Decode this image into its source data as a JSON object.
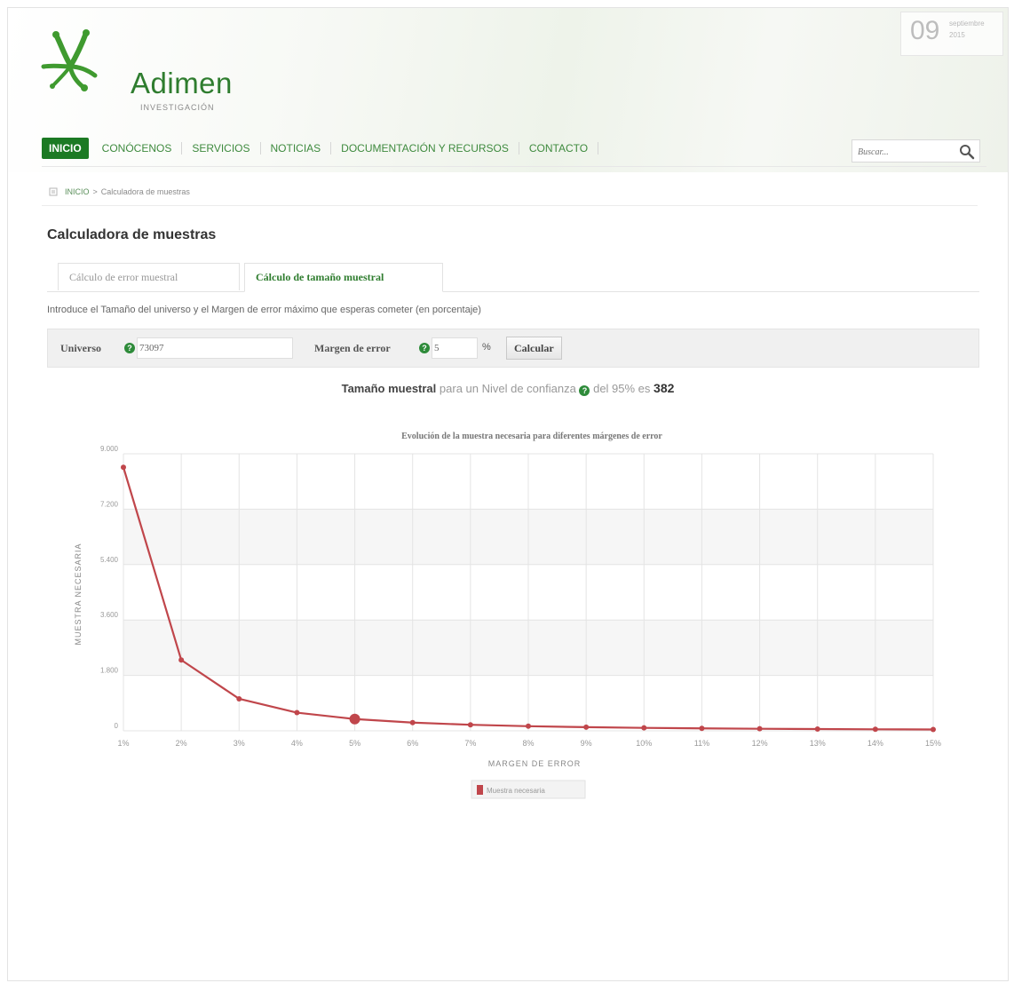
{
  "header": {
    "logo_name": "Adimen",
    "logo_sub": "INVESTIGACIÓN",
    "date_day": "09",
    "date_month": "septiembre",
    "date_year": "2015"
  },
  "nav": {
    "items": [
      "INICIO",
      "CONÓCENOS",
      "SERVICIOS",
      "NOTICIAS",
      "DOCUMENTACIÓN Y RECURSOS",
      "CONTACTO"
    ],
    "active": "INICIO"
  },
  "search": {
    "placeholder": "Buscar..."
  },
  "breadcrumb": {
    "home": "INICIO",
    "separator": ">",
    "current": "Calculadora de muestras"
  },
  "page_title": "Calculadora de muestras",
  "tabs": [
    {
      "label": "Cálculo de error muestral",
      "active": false
    },
    {
      "label": "Cálculo de tamaño muestral",
      "active": true
    }
  ],
  "intro_text": "Introduce el Tamaño del universo y el Margen de error máximo que esperas cometer (en porcentaje)",
  "form": {
    "universo_label": "Universo",
    "universo_value": "73097",
    "margen_label": "Margen de error",
    "margen_value": "5",
    "percent_sign": "%",
    "submit_label": "Calcular",
    "help_glyph": "?"
  },
  "result": {
    "prefix": "Tamaño muestral",
    "middle": "para un Nivel de confianza",
    "suffix": "del 95% es",
    "value": "382"
  },
  "colors": {
    "accent": "#1c7a24",
    "series": "#c0464b"
  },
  "chart_data": {
    "type": "line",
    "title": "Evolución de la muestra necesaria para diferentes márgenes de error",
    "xlabel": "MARGEN DE ERROR",
    "ylabel": "MUESTRA NECESARIA",
    "categories": [
      "1%",
      "2%",
      "3%",
      "4%",
      "5%",
      "6%",
      "7%",
      "8%",
      "9%",
      "10%",
      "11%",
      "12%",
      "13%",
      "14%",
      "15%"
    ],
    "y_ticks": [
      "0",
      "1.800",
      "3.600",
      "5.400",
      "7.200",
      "9.000"
    ],
    "ylim": [
      0,
      9000
    ],
    "grid": true,
    "legend_position": "bottom",
    "highlight_category": "5%",
    "series": [
      {
        "name": "Muestra necesaria",
        "values": [
          8560,
          2300,
          1040,
          590,
          382,
          266,
          196,
          150,
          118,
          96,
          79,
          67,
          57,
          49,
          43
        ]
      }
    ]
  }
}
